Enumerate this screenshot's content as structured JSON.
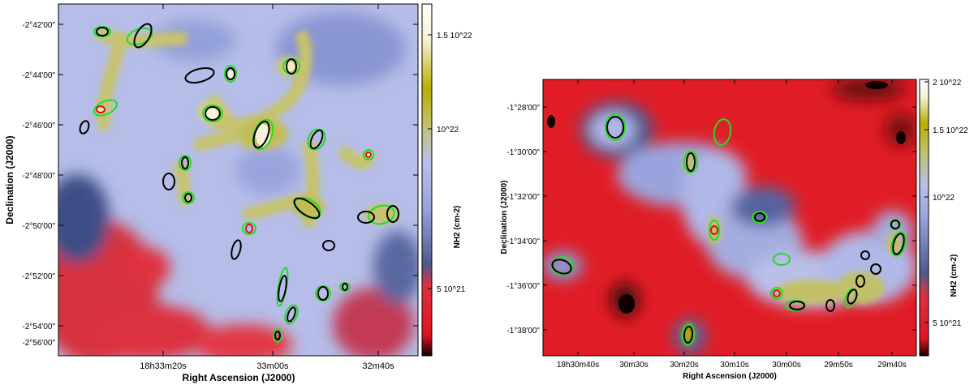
{
  "chart_data": [
    {
      "type": "heatmap",
      "colormap": [
        "#120000",
        "#e0141e",
        "#dd3140",
        "#4c5a8f",
        "#9aa4dc",
        "#b8c0ea",
        "#c2c069",
        "#b9ad00",
        "#f7f2d9",
        "#ffffff"
      ],
      "xlabel": "Right Ascension (J2000)",
      "ylabel": "Declination (J2000)",
      "x_ticks": [
        "18h33m20s",
        "33m00s",
        "32m40s"
      ],
      "y_ticks": [
        "-2°42'00\"",
        "-2°44'00\"",
        "-2°46'00\"",
        "-2°48'00\"",
        "-2°50'00\"",
        "-2°52'00\"",
        "-2°54'00\"",
        "-2°56'00\""
      ],
      "colorbar": {
        "label": "NH2 (cm-2)",
        "ticks": [
          "1.5 10^22",
          "10^22",
          "5 10^21"
        ]
      }
    },
    {
      "type": "heatmap",
      "colormap": [
        "#120000",
        "#e0141e",
        "#dd3140",
        "#4c5a8f",
        "#9aa4dc",
        "#b8c0ea",
        "#c2c069",
        "#b9ad00",
        "#f7f2d9",
        "#ffffff"
      ],
      "xlabel": "Right Ascension (J2000)",
      "ylabel": "Declination (J2000)",
      "x_ticks": [
        "18h30m40s",
        "30m30s",
        "30m20s",
        "30m10s",
        "30m00s",
        "29m50s",
        "29m40s"
      ],
      "y_ticks": [
        "-1°28'00\"",
        "-1°30'00\"",
        "-1°32'00\"",
        "-1°34'00\"",
        "-1°36'00\"",
        "-1°38'00\""
      ],
      "colorbar": {
        "label": "NH2 (cm-2)",
        "ticks": [
          "2 10^22",
          "1.5 10^22",
          "10^22",
          "5 10^21"
        ]
      }
    }
  ]
}
